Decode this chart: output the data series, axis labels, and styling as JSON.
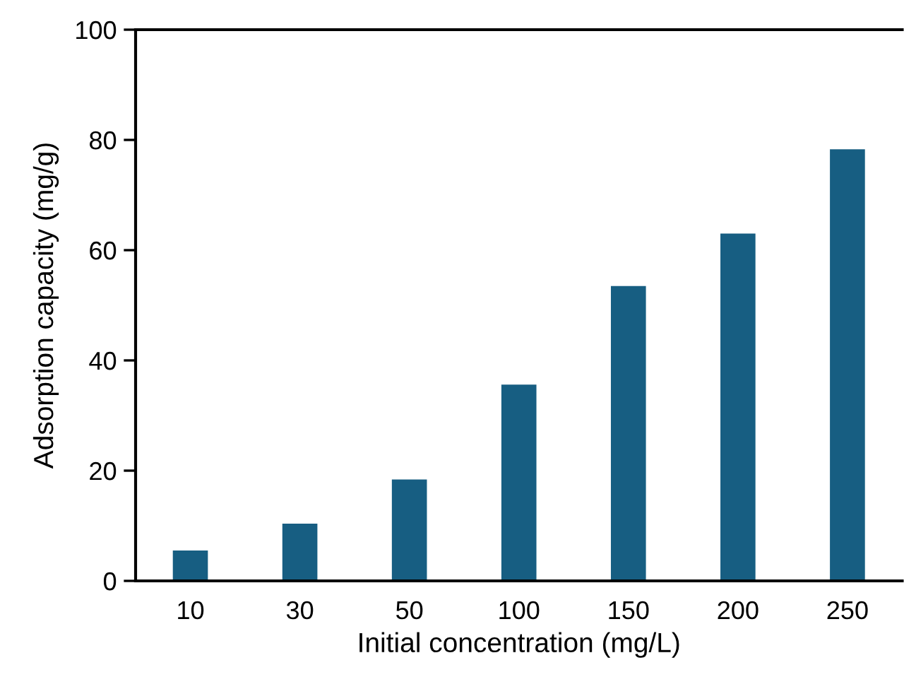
{
  "chart_data": {
    "type": "bar",
    "xlabel": "Initial concentration (mg/L)",
    "ylabel": "Adsorption capacity (mg/g)",
    "categories": [
      "10",
      "30",
      "50",
      "100",
      "150",
      "200",
      "250"
    ],
    "values": [
      5.5,
      10.4,
      18.4,
      35.6,
      53.5,
      63.0,
      78.3
    ],
    "color": "#175e82",
    "ylim": [
      0,
      100
    ],
    "yticks": [
      0,
      20,
      40,
      60,
      80,
      100
    ],
    "grid": false
  }
}
